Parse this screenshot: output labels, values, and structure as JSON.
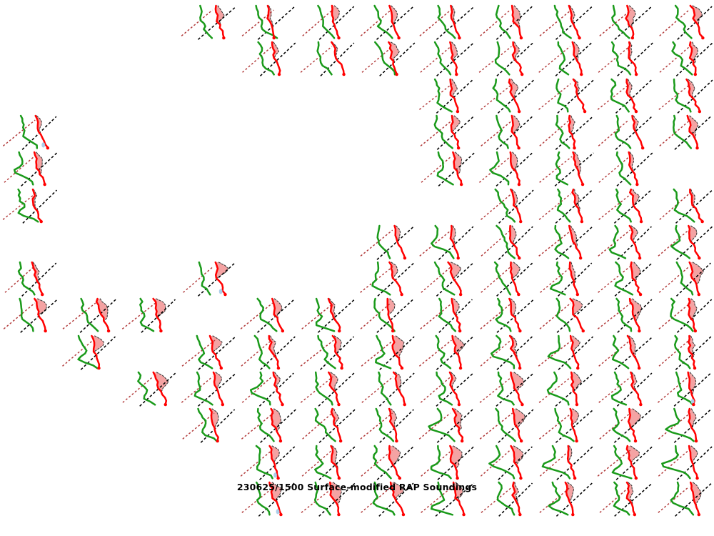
{
  "title": "230625/1500 Surface-modified RAP Soundings",
  "colors": {
    "background": "#ffffff",
    "temperature_line": "#ff0000",
    "dewpoint_line": "#1a9a1a",
    "parcel_path_dashed": "#000000",
    "reference_dashed": "#b23a3a",
    "cape_fill": "#f08080",
    "cape_edge": "#3d3d3d",
    "cin_fill": "#a9cbe9",
    "surface_dot": "#ff0000",
    "inactive_temperature_line": "#868686",
    "inactive_dewpoint_line": "#c8c8c8",
    "title_text": "#000000"
  },
  "chart_data": {
    "type": "line",
    "subtype": "small-multiples grid of miniature thermodynamic (skew-T style) sounding thumbnails",
    "title": "230625/1500 Surface-modified RAP Soundings",
    "grid_rows": 14,
    "grid_cols": 12,
    "cell_state_key": {
      "c": "active sounding: green dewpoint curve + red temperature curve with red surface dot, black dashed parcel path, dark-red dashed reference line, red-shaded CAPE area with dashed edge",
      "g": "inactive sounding: light-gray dewpoint curve + dark-gray temperature curve only"
    },
    "cell_states_by_row": [
      "gggccccccccc",
      "ggggcccccccc",
      "gggggggccccc",
      "cggggggccccc",
      "cggggggccccg",
      "cgggggggcccc",
      "ggggggcccccc",
      "cggcggcccccc",
      "cccgcccccccc",
      "gcgccccccccc",
      "ggcccccccccc",
      "gggccccccccc",
      "ggggcccccccc",
      "ggggcccccccc"
    ],
    "cin_cells": [
      [
        4,
        1
      ],
      [
        8,
        4
      ],
      [
        13,
        5
      ],
      [
        14,
        5
      ],
      [
        11,
        12
      ]
    ],
    "axes": "none — thumbnails have no axes, ticks, gridlines or numeric labels",
    "legend_position": "none"
  }
}
